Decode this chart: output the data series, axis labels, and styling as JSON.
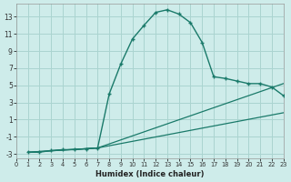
{
  "xlabel": "Humidex (Indice chaleur)",
  "bg_color": "#ceecea",
  "grid_color": "#aad4d0",
  "line_color": "#1a7a6a",
  "xlim": [
    0,
    23
  ],
  "ylim": [
    -3.5,
    14.5
  ],
  "xticks": [
    0,
    1,
    2,
    3,
    4,
    5,
    6,
    7,
    8,
    9,
    10,
    11,
    12,
    13,
    14,
    15,
    16,
    17,
    18,
    19,
    20,
    21,
    22,
    23
  ],
  "yticks": [
    -3,
    -1,
    1,
    3,
    5,
    7,
    9,
    11,
    13
  ],
  "curve1_x": [
    1,
    2,
    3,
    4,
    5,
    6,
    7,
    8,
    9,
    10,
    11,
    12,
    13,
    14,
    15,
    16,
    17,
    18,
    19,
    20,
    21,
    22,
    23
  ],
  "curve1_y": [
    -2.8,
    -2.8,
    -2.6,
    -2.5,
    -2.5,
    -2.4,
    -2.3,
    4.0,
    7.5,
    10.4,
    12.0,
    13.5,
    13.8,
    13.3,
    12.3,
    10.0,
    6.0,
    5.8,
    5.5,
    5.2,
    5.2,
    4.8,
    3.8
  ],
  "line2_x": [
    1,
    7,
    23
  ],
  "line2_y": [
    -2.8,
    -2.3,
    1.8
  ],
  "line3_x": [
    1,
    7,
    23
  ],
  "line3_y": [
    -2.8,
    -2.3,
    5.2
  ]
}
